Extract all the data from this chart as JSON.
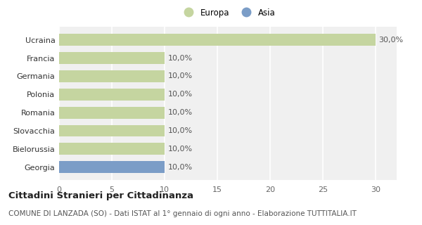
{
  "categories": [
    "Georgia",
    "Bielorussia",
    "Slovacchia",
    "Romania",
    "Polonia",
    "Germania",
    "Francia",
    "Ucraina"
  ],
  "values": [
    10.0,
    10.0,
    10.0,
    10.0,
    10.0,
    10.0,
    10.0,
    30.0
  ],
  "colors": [
    "#7b9dc7",
    "#c5d5a0",
    "#c5d5a0",
    "#c5d5a0",
    "#c5d5a0",
    "#c5d5a0",
    "#c5d5a0",
    "#c5d5a0"
  ],
  "europa_color": "#c5d5a0",
  "asia_color": "#7b9dc7",
  "bar_labels": [
    "10,0%",
    "10,0%",
    "10,0%",
    "10,0%",
    "10,0%",
    "10,0%",
    "10,0%",
    "30,0%"
  ],
  "xlim": [
    0,
    32
  ],
  "xticks": [
    0,
    5,
    10,
    15,
    20,
    25,
    30
  ],
  "plot_bg": "#f0f0f0",
  "fig_bg": "#ffffff",
  "title": "Cittadini Stranieri per Cittadinanza",
  "subtitle": "COMUNE DI LANZADA (SO) - Dati ISTAT al 1° gennaio di ogni anno - Elaborazione TUTTITALIA.IT",
  "legend_europa": "Europa",
  "legend_asia": "Asia",
  "bar_label_fontsize": 8,
  "tick_fontsize": 8,
  "ytick_fontsize": 8,
  "title_fontsize": 9.5,
  "subtitle_fontsize": 7.5
}
